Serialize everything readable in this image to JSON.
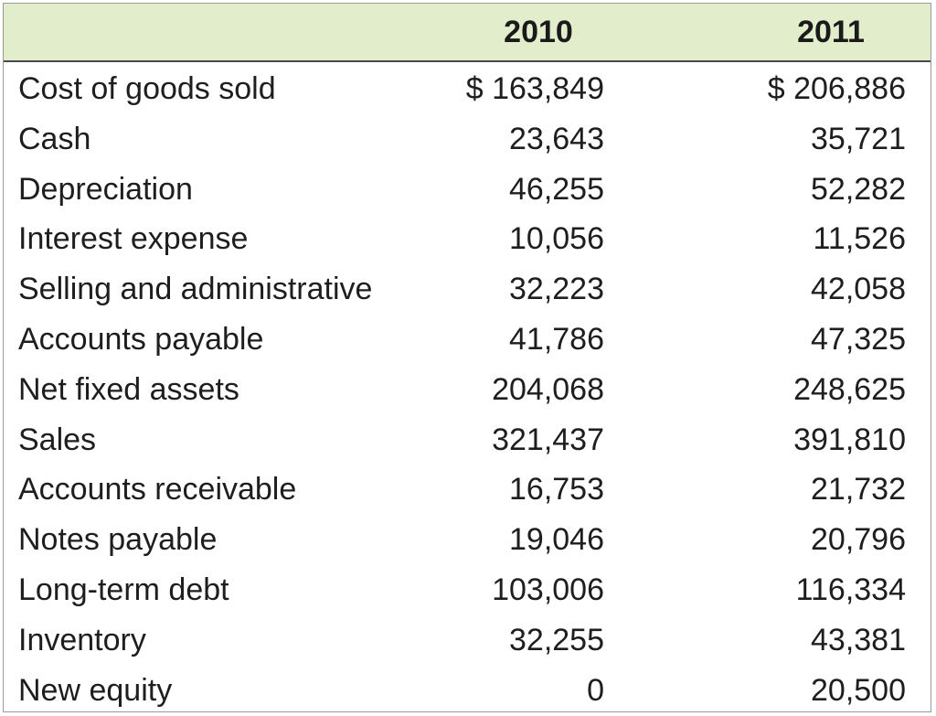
{
  "table": {
    "columns": [
      "",
      "2010",
      "2011"
    ],
    "rows": [
      {
        "label": "Cost of goods sold",
        "v2010": "$ 163,849",
        "v2011": "$ 206,886"
      },
      {
        "label": "Cash",
        "v2010": "23,643",
        "v2011": "35,721"
      },
      {
        "label": "Depreciation",
        "v2010": "46,255",
        "v2011": "52,282"
      },
      {
        "label": "Interest expense",
        "v2010": "10,056",
        "v2011": "11,526"
      },
      {
        "label": "Selling and administrative",
        "v2010": "32,223",
        "v2011": "42,058"
      },
      {
        "label": "Accounts payable",
        "v2010": "41,786",
        "v2011": "47,325"
      },
      {
        "label": "Net fixed assets",
        "v2010": "204,068",
        "v2011": "248,625"
      },
      {
        "label": "Sales",
        "v2010": "321,437",
        "v2011": "391,810"
      },
      {
        "label": "Accounts receivable",
        "v2010": "16,753",
        "v2011": "21,732"
      },
      {
        "label": "Notes payable",
        "v2010": "19,046",
        "v2011": "20,796"
      },
      {
        "label": "Long-term debt",
        "v2010": "103,006",
        "v2011": "116,334"
      },
      {
        "label": "Inventory",
        "v2010": "32,255",
        "v2011": "43,381"
      },
      {
        "label": "New equity",
        "v2010": "0",
        "v2011": "20,500"
      }
    ]
  },
  "colors": {
    "header_bg": "#e2edcb",
    "text": "#1e1e1e",
    "border": "#9a9a9a"
  }
}
